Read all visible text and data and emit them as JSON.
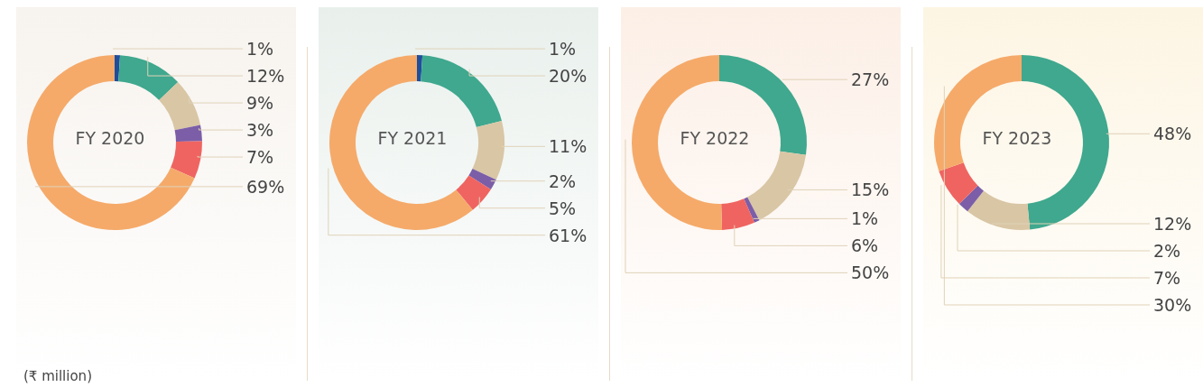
{
  "chart_data": [
    {
      "type": "donut",
      "title": "FY 2020",
      "categories": [
        null,
        null,
        null,
        null,
        null,
        null
      ],
      "values": [
        1,
        12,
        9,
        3,
        7,
        69
      ],
      "value_labels": [
        "1%",
        "12%",
        "9%",
        "3%",
        "7%",
        "69%"
      ],
      "colors": [
        "#1f4e9c",
        "#3fa88e",
        "#d9c6a5",
        "#7b5ea7",
        "#ef6461",
        "#f5aa6a"
      ],
      "legend": false,
      "annotations": [
        "(₹ million)"
      ]
    },
    {
      "type": "donut",
      "title": "FY 2021",
      "categories": [
        null,
        null,
        null,
        null,
        null,
        null
      ],
      "values": [
        1,
        20,
        11,
        2,
        5,
        61
      ],
      "value_labels": [
        "1%",
        "20%",
        "11%",
        "2%",
        "5%",
        "61%"
      ],
      "colors": [
        "#1f4e9c",
        "#3fa88e",
        "#d9c6a5",
        "#7b5ea7",
        "#ef6461",
        "#f5aa6a"
      ],
      "legend": false
    },
    {
      "type": "donut",
      "title": "FY 2022",
      "categories": [
        null,
        null,
        null,
        null,
        null
      ],
      "values": [
        27,
        15,
        1,
        6,
        50
      ],
      "value_labels": [
        "27%",
        "15%",
        "1%",
        "6%",
        "50%"
      ],
      "colors": [
        "#3fa88e",
        "#d9c6a5",
        "#7b5ea7",
        "#ef6461",
        "#f5aa6a"
      ],
      "legend": false
    },
    {
      "type": "donut",
      "title": "FY 2023",
      "categories": [
        null,
        null,
        null,
        null,
        null
      ],
      "values": [
        48,
        12,
        2,
        7,
        30
      ],
      "value_labels": [
        "48%",
        "12%",
        "2%",
        "7%",
        "30%"
      ],
      "colors": [
        "#3fa88e",
        "#d9c6a5",
        "#7b5ea7",
        "#ef6461",
        "#f5aa6a"
      ],
      "legend": false
    }
  ]
}
